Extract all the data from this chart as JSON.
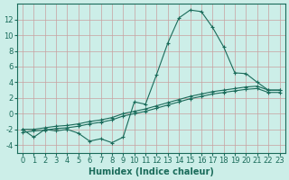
{
  "xlabel": "Humidex (Indice chaleur)",
  "bg_color": "#cceee8",
  "grid_color_h": "#d4a0a0",
  "grid_color_v": "#d4a0a0",
  "line_color": "#1a6b5a",
  "x_data": [
    0,
    1,
    2,
    3,
    4,
    5,
    6,
    7,
    8,
    9,
    10,
    11,
    12,
    13,
    14,
    15,
    16,
    17,
    18,
    19,
    20,
    21,
    22,
    23
  ],
  "line1": [
    -2.0,
    -3.0,
    -2.0,
    -2.2,
    -2.0,
    -2.5,
    -3.5,
    -3.2,
    -3.7,
    -3.0,
    1.5,
    1.2,
    5.0,
    9.0,
    12.2,
    13.2,
    13.0,
    11.0,
    8.5,
    5.2,
    5.1,
    4.0,
    3.0,
    3.0
  ],
  "line2": [
    -2.0,
    -2.0,
    -1.8,
    -1.6,
    -1.5,
    -1.3,
    -1.0,
    -0.8,
    -0.5,
    0.0,
    0.3,
    0.6,
    1.0,
    1.4,
    1.8,
    2.2,
    2.5,
    2.8,
    3.0,
    3.2,
    3.4,
    3.5,
    3.0,
    3.0
  ],
  "line3": [
    -2.4,
    -2.2,
    -2.1,
    -1.9,
    -1.8,
    -1.6,
    -1.3,
    -1.1,
    -0.8,
    -0.3,
    0.0,
    0.3,
    0.7,
    1.1,
    1.5,
    1.9,
    2.2,
    2.5,
    2.7,
    2.9,
    3.1,
    3.2,
    2.7,
    2.7
  ],
  "xlim": [
    -0.5,
    23.5
  ],
  "ylim": [
    -5,
    14
  ],
  "yticks": [
    -4,
    -2,
    0,
    2,
    4,
    6,
    8,
    10,
    12
  ],
  "xticks": [
    0,
    1,
    2,
    3,
    4,
    5,
    6,
    7,
    8,
    9,
    10,
    11,
    12,
    13,
    14,
    15,
    16,
    17,
    18,
    19,
    20,
    21,
    22,
    23
  ],
  "xlabel_fontsize": 7,
  "tick_fontsize": 6,
  "marker": "+"
}
